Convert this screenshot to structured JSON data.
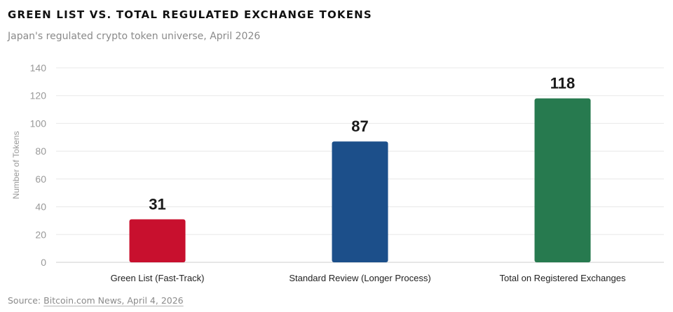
{
  "header": {
    "title": "GREEN LIST VS. TOTAL REGULATED EXCHANGE TOKENS",
    "subtitle": "Japan's regulated crypto token universe, April 2026"
  },
  "source": {
    "label": "Source:",
    "link_text": "Bitcoin.com News, April 4, 2026"
  },
  "chart_data": {
    "type": "bar",
    "title": "GREEN LIST VS. TOTAL REGULATED EXCHANGE TOKENS",
    "subtitle": "Japan's regulated crypto token universe, April 2026",
    "xlabel": "",
    "ylabel": "Number of Tokens",
    "categories": [
      "Green List (Fast-Track)",
      "Standard Review (Longer Process)",
      "Total on Registered Exchanges"
    ],
    "values": [
      31,
      87,
      118
    ],
    "colors": [
      "#c8102e",
      "#1c4f8a",
      "#277a4f"
    ],
    "ylim": [
      0,
      140
    ],
    "yticks": [
      0,
      20,
      40,
      60,
      80,
      100,
      120,
      140
    ],
    "grid": true,
    "legend": "none",
    "data_labels": true
  }
}
